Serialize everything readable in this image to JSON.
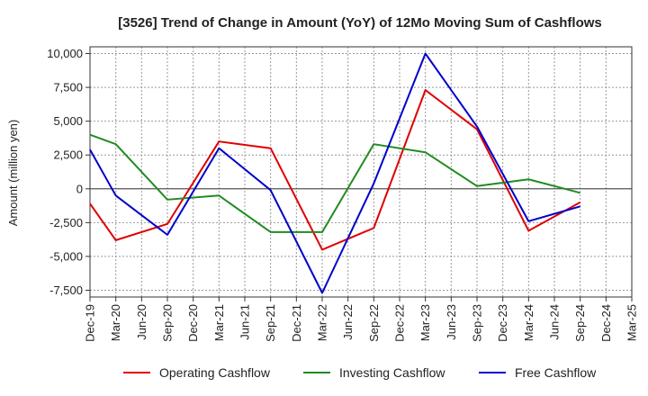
{
  "chart_data": {
    "type": "line",
    "title": "[3526]  Trend of Change in Amount (YoY) of 12Mo Moving Sum of Cashflows",
    "xlabel": "",
    "ylabel": "Amount (million yen)",
    "ylim": [
      -8000,
      10500
    ],
    "yticks": [
      10000,
      7500,
      5000,
      2500,
      0,
      -2500,
      -5000,
      -7500
    ],
    "ytick_labels": [
      "10,000",
      "7,500",
      "5,000",
      "2,500",
      "0",
      "-2,500",
      "-5,000",
      "-7,500"
    ],
    "categories": [
      "Dec-19",
      "Mar-20",
      "Jun-20",
      "Sep-20",
      "Dec-20",
      "Mar-21",
      "Jun-21",
      "Sep-21",
      "Dec-21",
      "Mar-22",
      "Jun-22",
      "Sep-22",
      "Dec-22",
      "Mar-23",
      "Jun-23",
      "Sep-23",
      "Dec-23",
      "Mar-24",
      "Jun-24",
      "Sep-24",
      "Dec-24",
      "Mar-25"
    ],
    "grid": true,
    "legend_position": "bottom",
    "series": [
      {
        "name": "Operating Cashflow",
        "color": "#e00000",
        "values": [
          -1100,
          -3800,
          null,
          -2600,
          null,
          3500,
          null,
          3000,
          null,
          -4500,
          null,
          -2900,
          null,
          7300,
          null,
          4400,
          null,
          -3100,
          null,
          -1000,
          null,
          null
        ]
      },
      {
        "name": "Investing Cashflow",
        "color": "#228b22",
        "values": [
          4000,
          3300,
          null,
          -800,
          null,
          -500,
          null,
          -3200,
          null,
          -3200,
          null,
          3300,
          null,
          2700,
          null,
          200,
          null,
          700,
          null,
          -300,
          null,
          null
        ]
      },
      {
        "name": "Free Cashflow",
        "color": "#0000cc",
        "values": [
          2900,
          -500,
          null,
          -3400,
          null,
          3000,
          null,
          -100,
          null,
          -7700,
          null,
          400,
          null,
          10000,
          null,
          4600,
          null,
          -2400,
          null,
          -1300,
          null,
          null
        ]
      }
    ]
  }
}
